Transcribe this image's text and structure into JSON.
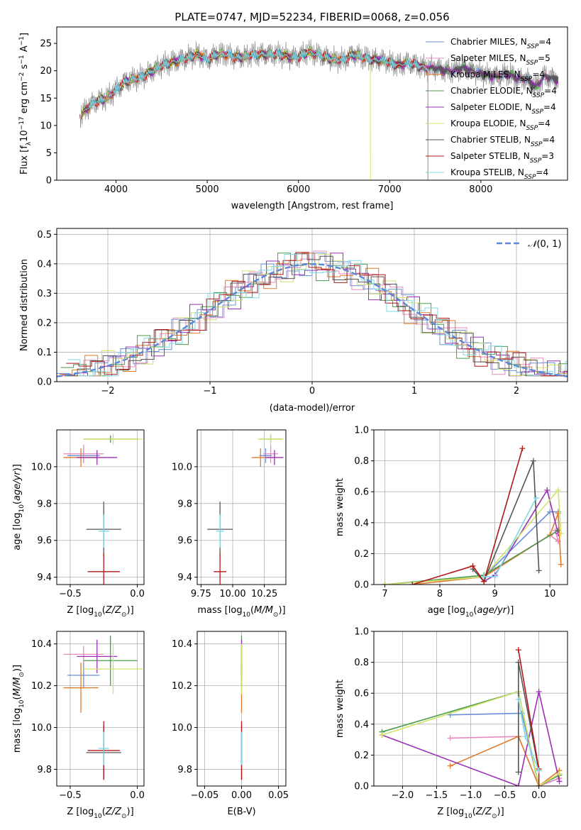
{
  "figure_title": "PLATE=0747, MJD=52234, FIBERID=0068, z=0.056",
  "series": [
    {
      "name": "Chabrier MILES",
      "nssp": "4",
      "color": "#6b8fd6"
    },
    {
      "name": "Salpeter MILES",
      "nssp": "5",
      "color": "#e889c0"
    },
    {
      "name": "Kroupa MILES",
      "nssp": "4",
      "color": "#e07a2a"
    },
    {
      "name": "Chabrier ELODIE",
      "nssp": "4",
      "color": "#4d9a4d"
    },
    {
      "name": "Salpeter ELODIE",
      "nssp": "4",
      "color": "#9a2fb5"
    },
    {
      "name": "Kroupa ELODIE",
      "nssp": "4",
      "color": "#cfe36a"
    },
    {
      "name": "Chabrier STELIB",
      "nssp": "4",
      "color": "#555555"
    },
    {
      "name": "Salpeter STELIB",
      "nssp": "3",
      "color": "#b01818"
    },
    {
      "name": "Kroupa STELIB",
      "nssp": "4",
      "color": "#7fd8e6"
    }
  ],
  "chart_data": [
    {
      "id": "spectrum",
      "type": "line",
      "xlabel": "wavelength [Angstrom, rest frame]",
      "ylabel": "Flux [f_λ 10^-17 erg cm^-2 s^-1 A^-1]",
      "xlim": [
        3350,
        8950
      ],
      "ylim": [
        0,
        28
      ],
      "xticks": [
        4000,
        5000,
        6000,
        7000,
        8000
      ],
      "yticks": [
        0,
        5,
        10,
        15,
        20,
        25
      ],
      "legend": "top-right",
      "grid": false,
      "data": {
        "wavelength": [
          3600,
          3700,
          3800,
          3900,
          4000,
          4100,
          4200,
          4300,
          4400,
          4500,
          4600,
          4700,
          4800,
          4900,
          5000,
          5100,
          5200,
          5300,
          5400,
          5500,
          5600,
          5700,
          5800,
          5900,
          6000,
          6100,
          6200,
          6300,
          6400,
          6500,
          6600,
          6700,
          6800,
          6900,
          7000,
          7100,
          7200,
          7300,
          7400,
          7500,
          7600,
          7700,
          7800,
          7900,
          8000,
          8100,
          8200,
          8300,
          8400,
          8500,
          8600,
          8700,
          8800
        ],
        "flux": [
          11.5,
          13.5,
          14.5,
          15.0,
          16.5,
          18.0,
          18.5,
          19.0,
          20.0,
          21.0,
          21.5,
          22.0,
          22.5,
          23.0,
          22.0,
          23.0,
          23.0,
          22.5,
          22.5,
          23.0,
          23.0,
          23.0,
          23.0,
          22.5,
          22.5,
          23.5,
          23.0,
          22.5,
          22.0,
          22.0,
          23.0,
          22.5,
          22.0,
          22.0,
          21.5,
          21.0,
          21.5,
          21.0,
          20.5,
          20.5,
          20.0,
          20.0,
          20.5,
          20.0,
          19.5,
          19.0,
          19.0,
          19.5,
          18.5,
          18.5,
          17.0,
          19.0,
          18.5
        ]
      }
    },
    {
      "id": "residuals",
      "type": "histogram",
      "xlabel": "(data-model)/error",
      "ylabel": "Normed distribution",
      "xlim": [
        -2.5,
        2.5
      ],
      "ylim": [
        0,
        0.52
      ],
      "xticks": [
        -2,
        -1,
        0,
        1,
        2
      ],
      "yticks": [
        0.0,
        0.1,
        0.2,
        0.3,
        0.4,
        0.5
      ],
      "grid": true,
      "legend": "top-right",
      "reference_curve": {
        "label": "N(0,1)",
        "mean": 0,
        "sigma": 1
      }
    },
    {
      "id": "age-vs-Z",
      "type": "scatter",
      "xlabel": "Z [log10(Z/Z⊙)]",
      "ylabel": "age [log10(age/yr)]",
      "xlim": [
        -0.6,
        0.05
      ],
      "ylim": [
        9.36,
        10.2
      ],
      "xticks": [
        -0.5,
        0.0
      ],
      "yticks": [
        9.4,
        9.6,
        9.8,
        10.0
      ],
      "grid": true,
      "points": [
        {
          "s": 0,
          "x": -0.4,
          "y": 10.06,
          "dx": 0.12,
          "dy": 0.04
        },
        {
          "s": 1,
          "x": -0.4,
          "y": 10.07,
          "dx": 0.15,
          "dy": 0.05
        },
        {
          "s": 2,
          "x": -0.42,
          "y": 10.05,
          "dx": 0.13,
          "dy": 0.05
        },
        {
          "s": 3,
          "x": -0.2,
          "y": 10.15,
          "dx": 0.2,
          "dy": 0.02
        },
        {
          "s": 4,
          "x": -0.3,
          "y": 10.05,
          "dx": 0.15,
          "dy": 0.04
        },
        {
          "s": 5,
          "x": -0.18,
          "y": 10.15,
          "dx": 0.22,
          "dy": 0.03
        },
        {
          "s": 6,
          "x": -0.25,
          "y": 9.66,
          "dx": 0.13,
          "dy": 0.15
        },
        {
          "s": 7,
          "x": -0.25,
          "y": 9.43,
          "dx": 0.12,
          "dy": 0.1
        },
        {
          "s": 8,
          "x": -0.25,
          "y": 9.65,
          "dx": 0.04,
          "dy": 0.09
        }
      ]
    },
    {
      "id": "age-vs-mass",
      "type": "scatter",
      "xlabel": "mass [log10(M/M⊙)]",
      "ylabel": "",
      "xlim": [
        9.72,
        10.42
      ],
      "ylim": [
        9.36,
        10.2
      ],
      "xticks": [
        9.75,
        10.0,
        10.25
      ],
      "yticks": [
        9.4,
        9.6,
        9.8,
        10.0
      ],
      "grid": true,
      "points": [
        {
          "s": 0,
          "x": 10.26,
          "y": 10.06,
          "dx": 0.05,
          "dy": 0.04
        },
        {
          "s": 1,
          "x": 10.3,
          "y": 10.07,
          "dx": 0.06,
          "dy": 0.05
        },
        {
          "s": 2,
          "x": 10.22,
          "y": 10.05,
          "dx": 0.07,
          "dy": 0.05
        },
        {
          "s": 3,
          "x": 10.3,
          "y": 10.15,
          "dx": 0.09,
          "dy": 0.02
        },
        {
          "s": 4,
          "x": 10.33,
          "y": 10.05,
          "dx": 0.07,
          "dy": 0.04
        },
        {
          "s": 5,
          "x": 10.3,
          "y": 10.15,
          "dx": 0.1,
          "dy": 0.03
        },
        {
          "s": 6,
          "x": 9.9,
          "y": 9.66,
          "dx": 0.1,
          "dy": 0.15
        },
        {
          "s": 7,
          "x": 9.9,
          "y": 9.43,
          "dx": 0.05,
          "dy": 0.1
        },
        {
          "s": 8,
          "x": 9.9,
          "y": 9.65,
          "dx": 0.03,
          "dy": 0.09
        }
      ]
    },
    {
      "id": "weight-vs-age",
      "type": "line",
      "xlabel": "age [log10(age/yr)]",
      "ylabel": "mass weight",
      "xlim": [
        6.8,
        10.32
      ],
      "ylim": [
        0,
        1.0
      ],
      "xticks": [
        7,
        8,
        9,
        10
      ],
      "yticks": [
        0.0,
        0.2,
        0.4,
        0.6,
        0.8,
        1.0
      ],
      "grid": true,
      "lines": [
        {
          "s": 0,
          "x": [
            7.0,
            8.8,
            10.0,
            10.15
          ],
          "y": [
            0.0,
            0.05,
            0.47,
            0.47
          ]
        },
        {
          "s": 1,
          "x": [
            8.8,
            10.0,
            10.15,
            10.1
          ],
          "y": [
            0.05,
            0.32,
            0.28,
            0.35
          ]
        },
        {
          "s": 2,
          "x": [
            7.5,
            8.8,
            10.0,
            10.15,
            10.2
          ],
          "y": [
            0.0,
            0.05,
            0.32,
            0.46,
            0.13
          ]
        },
        {
          "s": 3,
          "x": [
            7.0,
            8.8,
            10.15
          ],
          "y": [
            0.0,
            0.06,
            0.35
          ]
        },
        {
          "s": 4,
          "x": [
            8.8,
            9.0,
            9.95,
            10.15
          ],
          "y": [
            0.02,
            0.06,
            0.61,
            0.33
          ]
        },
        {
          "s": 5,
          "x": [
            7.0,
            8.8,
            10.15,
            10.2
          ],
          "y": [
            0.0,
            0.05,
            0.61,
            0.33
          ]
        },
        {
          "s": 6,
          "x": [
            8.6,
            8.8,
            9.7,
            9.8
          ],
          "y": [
            0.1,
            0.02,
            0.8,
            0.09
          ]
        },
        {
          "s": 7,
          "x": [
            7.5,
            8.6,
            8.8,
            9.5
          ],
          "y": [
            0.0,
            0.12,
            0.02,
            0.88
          ]
        },
        {
          "s": 8,
          "x": [
            8.8,
            9.0,
            9.75
          ],
          "y": [
            0.05,
            0.05,
            0.56
          ]
        }
      ]
    },
    {
      "id": "mass-vs-Z",
      "type": "scatter",
      "xlabel": "Z [log10(Z/Z⊙)]",
      "ylabel": "mass [log10(M/M⊙)]",
      "xlim": [
        -0.6,
        0.05
      ],
      "ylim": [
        9.72,
        10.46
      ],
      "xticks": [
        -0.5,
        0.0
      ],
      "yticks": [
        9.8,
        10.0,
        10.2,
        10.4
      ],
      "grid": true,
      "points": [
        {
          "s": 0,
          "x": -0.4,
          "y": 10.25,
          "dx": 0.12,
          "dy": 0.06
        },
        {
          "s": 1,
          "x": -0.4,
          "y": 10.35,
          "dx": 0.15,
          "dy": 0.04
        },
        {
          "s": 2,
          "x": -0.42,
          "y": 10.19,
          "dx": 0.13,
          "dy": 0.12
        },
        {
          "s": 3,
          "x": -0.2,
          "y": 10.32,
          "dx": 0.2,
          "dy": 0.12
        },
        {
          "s": 4,
          "x": -0.3,
          "y": 10.34,
          "dx": 0.15,
          "dy": 0.08
        },
        {
          "s": 5,
          "x": -0.18,
          "y": 10.28,
          "dx": 0.22,
          "dy": 0.12
        },
        {
          "s": 6,
          "x": -0.25,
          "y": 9.88,
          "dx": 0.13,
          "dy": 0.13
        },
        {
          "s": 7,
          "x": -0.25,
          "y": 9.89,
          "dx": 0.12,
          "dy": 0.14
        },
        {
          "s": 8,
          "x": -0.25,
          "y": 9.9,
          "dx": 0.04,
          "dy": 0.08
        }
      ]
    },
    {
      "id": "mass-vs-EBV",
      "type": "scatter",
      "xlabel": "E(B-V)",
      "ylabel": "",
      "xlim": [
        -0.06,
        0.06
      ],
      "ylim": [
        9.72,
        10.46
      ],
      "xticks": [
        -0.05,
        0.0,
        0.05
      ],
      "yticks": [
        9.8,
        10.0,
        10.2,
        10.4
      ],
      "grid": true,
      "points": [
        {
          "s": 0,
          "x": 0.0,
          "y": 10.25,
          "dx": 0.0,
          "dy": 0.06
        },
        {
          "s": 1,
          "x": 0.0,
          "y": 10.35,
          "dx": 0.0,
          "dy": 0.04
        },
        {
          "s": 2,
          "x": 0.0,
          "y": 10.19,
          "dx": 0.0,
          "dy": 0.12
        },
        {
          "s": 3,
          "x": 0.0,
          "y": 10.32,
          "dx": 0.0,
          "dy": 0.12
        },
        {
          "s": 4,
          "x": 0.0,
          "y": 10.34,
          "dx": 0.0,
          "dy": 0.08
        },
        {
          "s": 5,
          "x": 0.0,
          "y": 10.28,
          "dx": 0.0,
          "dy": 0.12
        },
        {
          "s": 6,
          "x": 0.0,
          "y": 9.88,
          "dx": 0.0,
          "dy": 0.13
        },
        {
          "s": 7,
          "x": 0.0,
          "y": 9.89,
          "dx": 0.0,
          "dy": 0.14
        },
        {
          "s": 8,
          "x": 0.0,
          "y": 9.9,
          "dx": 0.0,
          "dy": 0.08
        }
      ]
    },
    {
      "id": "weight-vs-Z",
      "type": "line",
      "xlabel": "Z [log10(Z/Z⊙)]",
      "ylabel": "mass weight",
      "xlim": [
        -2.42,
        0.42
      ],
      "ylim": [
        0,
        1.0
      ],
      "xticks": [
        -2.0,
        -1.5,
        -1.0,
        -0.5,
        0.0
      ],
      "yticks": [
        0.0,
        0.2,
        0.4,
        0.6,
        0.8,
        1.0
      ],
      "grid": true,
      "lines": [
        {
          "s": 0,
          "x": [
            -1.3,
            -0.25,
            0.0,
            0.3
          ],
          "y": [
            0.46,
            0.47,
            0.0,
            0.05
          ]
        },
        {
          "s": 1,
          "x": [
            -1.3,
            -0.3,
            0.0,
            0.3
          ],
          "y": [
            0.31,
            0.32,
            0.0,
            0.05
          ]
        },
        {
          "s": 2,
          "x": [
            -1.3,
            -0.3,
            0.0,
            0.3
          ],
          "y": [
            0.13,
            0.32,
            0.0,
            0.1
          ]
        },
        {
          "s": 3,
          "x": [
            -2.3,
            -0.3,
            0.0,
            0.3
          ],
          "y": [
            0.35,
            0.61,
            0.0,
            0.07
          ]
        },
        {
          "s": 4,
          "x": [
            -2.3,
            -0.3,
            0.0,
            0.3
          ],
          "y": [
            0.33,
            0.0,
            0.61,
            0.03
          ]
        },
        {
          "s": 5,
          "x": [
            -2.3,
            -0.3,
            0.0,
            0.3
          ],
          "y": [
            0.33,
            0.61,
            0.0,
            0.08
          ]
        },
        {
          "s": 6,
          "x": [
            -0.3,
            -0.3,
            0.0
          ],
          "y": [
            0.09,
            0.8,
            0.1
          ]
        },
        {
          "s": 7,
          "x": [
            -0.3,
            0.0,
            0.0
          ],
          "y": [
            0.88,
            0.11,
            0.0
          ]
        },
        {
          "s": 8,
          "x": [
            -0.3,
            -0.2,
            0.0
          ],
          "y": [
            0.56,
            0.32,
            0.1
          ]
        }
      ]
    }
  ]
}
